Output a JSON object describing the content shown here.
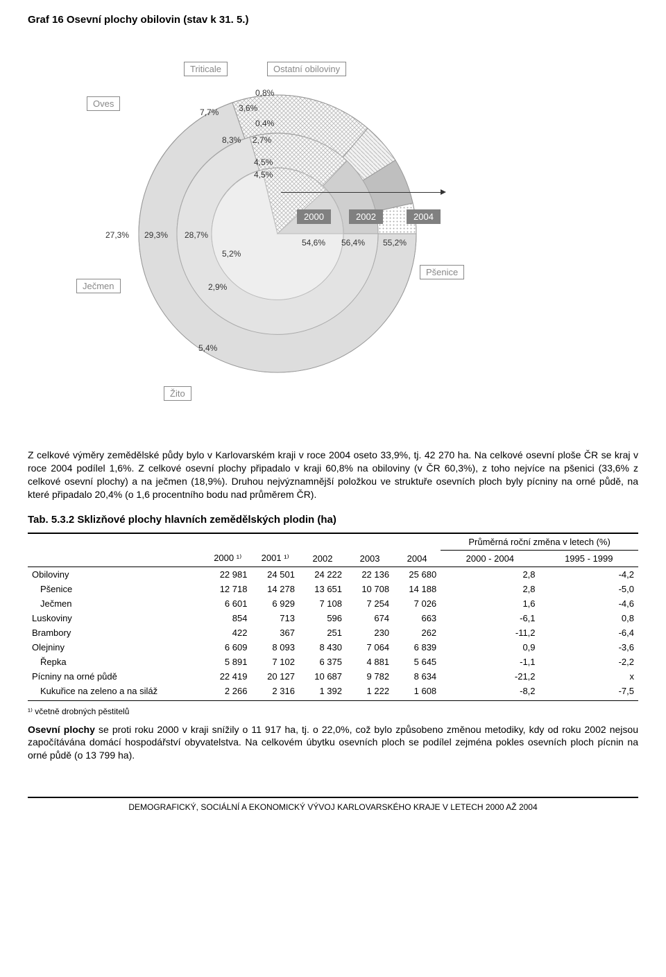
{
  "chart": {
    "title": "Graf 16 Osevní plochy obilovin (stav k 31. 5.)",
    "legend": {
      "triticale": "Triticale",
      "ostatni": "Ostatní obiloviny",
      "oves": "Oves",
      "jecmen": "Ječmen",
      "zito": "Žito",
      "psenice": "Pšenice"
    },
    "years": {
      "y2000": "2000",
      "y2002": "2002",
      "y2004": "2004"
    },
    "pct": {
      "p08": "0,8%",
      "p36": "3,6%",
      "p04": "0,4%",
      "p77": "7,7%",
      "p83": "8,3%",
      "p27": "2,7%",
      "p45a": "4,5%",
      "p45b": "4,5%",
      "p273": "27,3%",
      "p293": "29,3%",
      "p287": "28,7%",
      "p52": "5,2%",
      "p29": "2,9%",
      "p54": "5,4%",
      "p546": "54,6%",
      "p564": "56,4%",
      "p552": "55,2%"
    }
  },
  "para1": "Z celkové výměry zemědělské půdy bylo v Karlovarském kraji v roce 2004 oseto 33,9%, tj. 42 270 ha. Na celkové osevní ploše ČR se kraj v roce 2004 podílel 1,6%. Z celkové osevní plochy připadalo v kraji 60,8% na obiloviny (v ČR 60,3%), z toho nejvíce na pšenici (33,6% z celkové osevní plochy) a na ječmen (18,9%). Druhou nejvýznamnější položkou ve struktuře osevních ploch byly pícniny na orné půdě, na které připadalo 20,4% (o 1,6 procentního bodu nad průměrem ČR).",
  "table": {
    "title": "Tab. 5.3.2 Sklizňové plochy hlavních zemědělských plodin (ha)",
    "head": {
      "y2000": "2000 ¹⁾",
      "y2001": "2001 ¹⁾",
      "y2002": "2002",
      "y2003": "2003",
      "y2004": "2004",
      "grp": "Průměrná roční změna v letech (%)",
      "r1": "2000 - 2004",
      "r2": "1995 - 1999"
    },
    "rows": [
      {
        "n": "Obiloviny",
        "v": [
          "22 981",
          "24 501",
          "24 222",
          "22 136",
          "25 680",
          "2,8",
          "-4,2"
        ],
        "indent": false
      },
      {
        "n": "Pšenice",
        "v": [
          "12 718",
          "14 278",
          "13 651",
          "10 708",
          "14 188",
          "2,8",
          "-5,0"
        ],
        "indent": true
      },
      {
        "n": "Ječmen",
        "v": [
          "6 601",
          "6 929",
          "7 108",
          "7 254",
          "7 026",
          "1,6",
          "-4,6"
        ],
        "indent": true
      },
      {
        "n": "Luskoviny",
        "v": [
          "854",
          "713",
          "596",
          "674",
          "663",
          "-6,1",
          "0,8"
        ],
        "indent": false
      },
      {
        "n": "Brambory",
        "v": [
          "422",
          "367",
          "251",
          "230",
          "262",
          "-11,2",
          "-6,4"
        ],
        "indent": false
      },
      {
        "n": "Olejniny",
        "v": [
          "6 609",
          "8 093",
          "8 430",
          "7 064",
          "6 839",
          "0,9",
          "-3,6"
        ],
        "indent": false
      },
      {
        "n": "Řepka",
        "v": [
          "5 891",
          "7 102",
          "6 375",
          "4 881",
          "5 645",
          "-1,1",
          "-2,2"
        ],
        "indent": true
      },
      {
        "n": "Pícniny na orné půdě",
        "v": [
          "22 419",
          "20 127",
          "10 687",
          "9 782",
          "8 634",
          "-21,2",
          "x"
        ],
        "indent": false
      },
      {
        "n": "Kukuřice na zeleno a na siláž",
        "v": [
          "2 266",
          "2 316",
          "1 392",
          "1 222",
          "1 608",
          "-8,2",
          "-7,5"
        ],
        "indent": true
      }
    ],
    "footnote": "¹⁾ včetně drobných pěstitelů"
  },
  "para2_a": "Osevní plochy ",
  "para2_b": "se proti roku 2000 v kraji snížily o 11 917 ha, tj. o 22,0%, což bylo způsobeno změnou metodiky, kdy od roku 2002 nejsou započítávána domácí hospodářství obyvatelstva. Na celkovém úbytku osevních ploch se podílel zejména pokles osevních ploch pícnin na orné půdě (o 13 799  ha).",
  "footer": "DEMOGRAFICKÝ, SOCIÁLNÍ A EKONOMICKÝ VÝVOJ KARLOVARSKÉHO KRAJE V LETECH 2000 AŽ 2004"
}
